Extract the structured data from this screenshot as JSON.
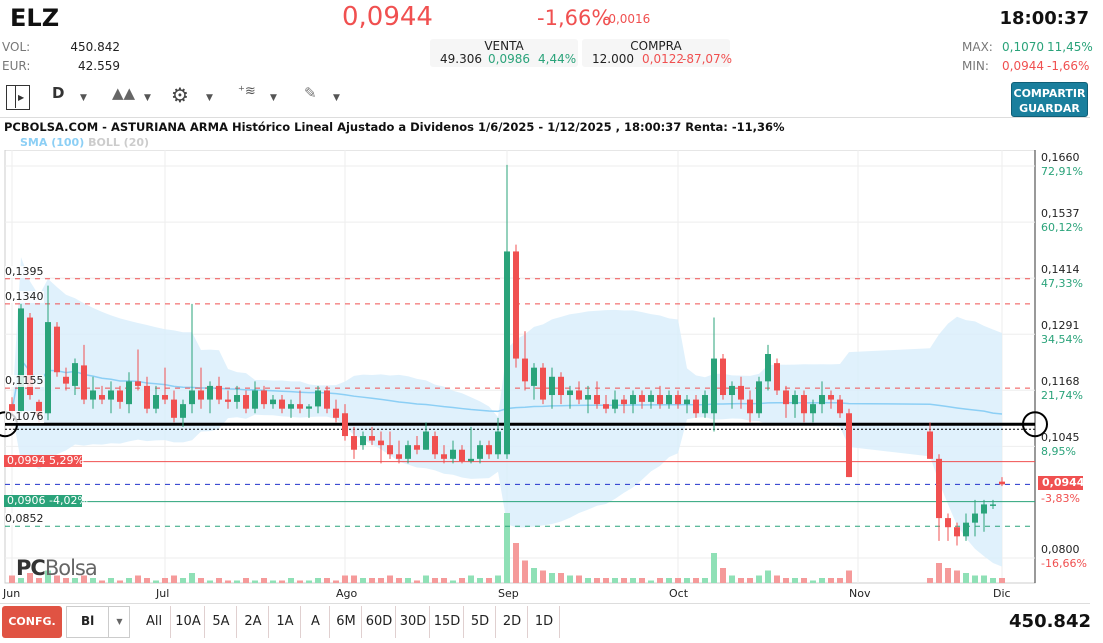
{
  "header": {
    "ticker": "ELZ",
    "price": "0,0944",
    "change_pct": "-1,66%",
    "change_abs": "-0,0016",
    "time": "18:00:37",
    "vol_label": "VOL:",
    "vol": "450.842",
    "eur_label": "EUR:",
    "eur": "42.559",
    "venta": {
      "label": "VENTA",
      "qty": "49.306",
      "price": "0,0986",
      "pct": "4,44%"
    },
    "compra": {
      "label": "COMPRA",
      "qty": "12.000",
      "price": "0,0122",
      "pct": "-87,07%"
    },
    "max_label": "MAX:",
    "max": "0,1070",
    "max_pct": "11,45%",
    "min_label": "MIN:",
    "min": "0,0944",
    "min_pct": "-1,66%"
  },
  "toolbar": {
    "period": "D",
    "share_label": "COMPARTIR",
    "save_label": "GUARDAR",
    "icons": [
      "panel-toggle-icon",
      "area-chart-icon",
      "gear-icon",
      "indicator-icon",
      "pencil-icon"
    ]
  },
  "chart": {
    "title": "PCBOLSA.COM - ASTURIANA ARMA Histórico Lineal Ajustado a Dividenos 1/6/2025 - 1/12/2025 , 18:00:37 Renta: -11,36%",
    "legend": [
      {
        "label": "SMA (100)",
        "color": "#8ccff5"
      },
      {
        "label": "BOLL (20)",
        "color": "#cccccc"
      }
    ],
    "logo": "PCBolsa"
  },
  "colors": {
    "up": "#2aa37a",
    "down": "#f05050",
    "band": "#d8eefb",
    "accent": "#1a7f9d"
  },
  "chart_data": {
    "type": "candlestick",
    "ylim": [
      0.08,
      0.166
    ],
    "y_ticks": [
      {
        "v": "0,1660",
        "p": "72,91%"
      },
      {
        "v": "0,1537",
        "p": "60,12%"
      },
      {
        "v": "0,1414",
        "p": "47,33%"
      },
      {
        "v": "0,1291",
        "p": "34,54%"
      },
      {
        "v": "0,1168",
        "p": "21,74%"
      },
      {
        "v": "0,1045",
        "p": "8,95%"
      },
      {
        "v": "0,0800",
        "p": "-16,66%"
      }
    ],
    "y_tick_values": [
      0.166,
      0.1537,
      0.1414,
      0.1291,
      0.1168,
      0.1045,
      0.08
    ],
    "current": {
      "value": 0.0944,
      "label": "0,0944",
      "pct": "-3,83%"
    },
    "months": [
      {
        "label": "Jun",
        "i": 0
      },
      {
        "label": "Jul",
        "i": 17
      },
      {
        "label": "Ago",
        "i": 37
      },
      {
        "label": "Sep",
        "i": 55
      },
      {
        "label": "Oct",
        "i": 74
      },
      {
        "label": "Nov",
        "i": 94
      },
      {
        "label": "Dic",
        "i": 110
      }
    ],
    "levels": [
      {
        "value": 0.1395,
        "label": "0,1395",
        "style": "dash",
        "color": "#f05050"
      },
      {
        "value": 0.134,
        "label": "0,1340",
        "style": "dash",
        "color": "#f05050"
      },
      {
        "value": 0.1155,
        "label": "0,1155",
        "style": "dash",
        "color": "#f05050"
      },
      {
        "value": 0.1076,
        "label": "0,1076",
        "style": "thick",
        "color": "#000000"
      },
      {
        "value": 0.0994,
        "label": "0,0994  5,29%",
        "style": "solid",
        "color": "#f05050",
        "tag": true
      },
      {
        "value": 0.0944,
        "label": "",
        "style": "dash",
        "color": "#2233cc"
      },
      {
        "value": 0.0906,
        "label": "0,0906  -4,02%",
        "style": "solid",
        "color": "#2aa37a",
        "tag": true
      },
      {
        "value": 0.0852,
        "label": "0,0852",
        "style": "dash",
        "color": "#2aa37a"
      }
    ],
    "ohlc": [
      [
        0.112,
        0.1135,
        0.11,
        0.1105
      ],
      [
        0.1105,
        0.134,
        0.11,
        0.133
      ],
      [
        0.131,
        0.132,
        0.113,
        0.114
      ],
      [
        0.1125,
        0.113,
        0.108,
        0.1095
      ],
      [
        0.11,
        0.138,
        0.1085,
        0.13
      ],
      [
        0.129,
        0.13,
        0.118,
        0.119
      ],
      [
        0.118,
        0.12,
        0.115,
        0.1165
      ],
      [
        0.116,
        0.122,
        0.114,
        0.121
      ],
      [
        0.1205,
        0.125,
        0.112,
        0.113
      ],
      [
        0.113,
        0.118,
        0.111,
        0.115
      ],
      [
        0.114,
        0.116,
        0.112,
        0.113
      ],
      [
        0.113,
        0.117,
        0.11,
        0.115
      ],
      [
        0.115,
        0.116,
        0.111,
        0.1125
      ],
      [
        0.112,
        0.119,
        0.11,
        0.117
      ],
      [
        0.117,
        0.124,
        0.115,
        0.116
      ],
      [
        0.116,
        0.118,
        0.11,
        0.111
      ],
      [
        0.111,
        0.116,
        0.11,
        0.114
      ],
      [
        0.114,
        0.12,
        0.112,
        0.113
      ],
      [
        0.113,
        0.115,
        0.108,
        0.109
      ],
      [
        0.109,
        0.113,
        0.107,
        0.112
      ],
      [
        0.112,
        0.134,
        0.11,
        0.115
      ],
      [
        0.115,
        0.12,
        0.111,
        0.113
      ],
      [
        0.113,
        0.117,
        0.11,
        0.116
      ],
      [
        0.116,
        0.118,
        0.112,
        0.113
      ],
      [
        0.113,
        0.115,
        0.111,
        0.1125
      ],
      [
        0.1125,
        0.116,
        0.111,
        0.114
      ],
      [
        0.114,
        0.115,
        0.11,
        0.111
      ],
      [
        0.111,
        0.117,
        0.11,
        0.115
      ],
      [
        0.115,
        0.116,
        0.111,
        0.112
      ],
      [
        0.112,
        0.114,
        0.111,
        0.113
      ],
      [
        0.113,
        0.114,
        0.11,
        0.111
      ],
      [
        0.111,
        0.113,
        0.109,
        0.112
      ],
      [
        0.112,
        0.115,
        0.11,
        0.111
      ],
      [
        0.111,
        0.112,
        0.109,
        0.1115
      ],
      [
        0.1115,
        0.116,
        0.11,
        0.115
      ],
      [
        0.115,
        0.116,
        0.11,
        0.111
      ],
      [
        0.111,
        0.113,
        0.108,
        0.109
      ],
      [
        0.11,
        0.112,
        0.104,
        0.105
      ],
      [
        0.105,
        0.107,
        0.1,
        0.102
      ],
      [
        0.103,
        0.106,
        0.102,
        0.105
      ],
      [
        0.105,
        0.107,
        0.103,
        0.104
      ],
      [
        0.104,
        0.106,
        0.099,
        0.103
      ],
      [
        0.103,
        0.106,
        0.1,
        0.101
      ],
      [
        0.101,
        0.104,
        0.099,
        0.1
      ],
      [
        0.1,
        0.104,
        0.099,
        0.103
      ],
      [
        0.103,
        0.105,
        0.101,
        0.102
      ],
      [
        0.102,
        0.108,
        0.102,
        0.106
      ],
      [
        0.105,
        0.106,
        0.1,
        0.101
      ],
      [
        0.101,
        0.103,
        0.099,
        0.1
      ],
      [
        0.1,
        0.104,
        0.099,
        0.102
      ],
      [
        0.102,
        0.103,
        0.099,
        0.0995
      ],
      [
        0.0995,
        0.107,
        0.099,
        0.1
      ],
      [
        0.1,
        0.104,
        0.099,
        0.103
      ],
      [
        0.103,
        0.104,
        0.1,
        0.101
      ],
      [
        0.101,
        0.109,
        0.1,
        0.106
      ],
      [
        0.101,
        0.1645,
        0.1,
        0.1455
      ],
      [
        0.1455,
        0.147,
        0.12,
        0.122
      ],
      [
        0.122,
        0.128,
        0.115,
        0.117
      ],
      [
        0.116,
        0.121,
        0.113,
        0.12
      ],
      [
        0.12,
        0.121,
        0.112,
        0.113
      ],
      [
        0.114,
        0.12,
        0.111,
        0.118
      ],
      [
        0.118,
        0.119,
        0.112,
        0.114
      ],
      [
        0.114,
        0.116,
        0.111,
        0.115
      ],
      [
        0.115,
        0.117,
        0.112,
        0.113
      ],
      [
        0.113,
        0.116,
        0.11,
        0.114
      ],
      [
        0.114,
        0.117,
        0.111,
        0.112
      ],
      [
        0.112,
        0.114,
        0.11,
        0.111
      ],
      [
        0.111,
        0.115,
        0.11,
        0.113
      ],
      [
        0.113,
        0.114,
        0.11,
        0.112
      ],
      [
        0.112,
        0.115,
        0.11,
        0.114
      ],
      [
        0.114,
        0.115,
        0.111,
        0.1125
      ],
      [
        0.1125,
        0.115,
        0.111,
        0.114
      ],
      [
        0.114,
        0.116,
        0.111,
        0.112
      ],
      [
        0.112,
        0.115,
        0.111,
        0.114
      ],
      [
        0.114,
        0.115,
        0.111,
        0.112
      ],
      [
        0.112,
        0.114,
        0.11,
        0.113
      ],
      [
        0.113,
        0.114,
        0.109,
        0.11
      ],
      [
        0.11,
        0.115,
        0.109,
        0.114
      ],
      [
        0.11,
        0.131,
        0.106,
        0.122
      ],
      [
        0.122,
        0.123,
        0.113,
        0.114
      ],
      [
        0.114,
        0.117,
        0.111,
        0.116
      ],
      [
        0.116,
        0.118,
        0.111,
        0.113
      ],
      [
        0.113,
        0.115,
        0.108,
        0.11
      ],
      [
        0.11,
        0.118,
        0.109,
        0.117
      ],
      [
        0.117,
        0.125,
        0.115,
        0.123
      ],
      [
        0.121,
        0.122,
        0.114,
        0.115
      ],
      [
        0.115,
        0.116,
        0.109,
        0.112
      ],
      [
        0.112,
        0.115,
        0.109,
        0.114
      ],
      [
        0.114,
        0.115,
        0.108,
        0.11
      ],
      [
        0.11,
        0.113,
        0.108,
        0.112
      ],
      [
        0.112,
        0.117,
        0.11,
        0.114
      ],
      [
        0.114,
        0.115,
        0.111,
        0.113
      ],
      [
        0.113,
        0.114,
        0.109,
        0.11
      ],
      [
        0.11,
        0.111,
        0.096,
        0.096
      ],
      null,
      null,
      null,
      null,
      null,
      null,
      null,
      null,
      [
        0.106,
        0.108,
        0.1,
        0.1
      ],
      [
        0.1,
        0.101,
        0.082,
        0.087
      ],
      [
        0.087,
        0.088,
        0.082,
        0.085
      ],
      [
        0.085,
        0.086,
        0.081,
        0.083
      ],
      [
        0.083,
        0.088,
        0.082,
        0.086
      ],
      [
        0.086,
        0.091,
        0.083,
        0.088
      ],
      [
        0.088,
        0.091,
        0.084,
        0.09
      ],
      [
        0.09,
        0.091,
        0.089,
        0.09
      ],
      [
        0.095,
        0.096,
        0.094,
        0.0944
      ]
    ],
    "volume": [
      3,
      2,
      4,
      2,
      5,
      3,
      2,
      2,
      3,
      2,
      1,
      2,
      1,
      2,
      3,
      2,
      1,
      2,
      3,
      2,
      4,
      2,
      1,
      2,
      1,
      1,
      2,
      1,
      2,
      1,
      1,
      2,
      1,
      1,
      2,
      2,
      1,
      3,
      3,
      2,
      2,
      2,
      3,
      2,
      2,
      1,
      3,
      2,
      2,
      1,
      2,
      3,
      2,
      2,
      3,
      28,
      16,
      9,
      6,
      5,
      4,
      4,
      3,
      3,
      2,
      2,
      2,
      2,
      2,
      2,
      2,
      1,
      2,
      2,
      2,
      2,
      2,
      2,
      12,
      6,
      3,
      2,
      2,
      3,
      5,
      3,
      2,
      2,
      2,
      1,
      2,
      2,
      2,
      5,
      0,
      0,
      0,
      0,
      0,
      0,
      0,
      0,
      2,
      8,
      6,
      5,
      4,
      3,
      3,
      2,
      2
    ]
  },
  "footer": {
    "config": "CONFG.",
    "type": "Bl",
    "periods": [
      "All",
      "10A",
      "5A",
      "2A",
      "1A",
      "A",
      "6M",
      "60D",
      "30D",
      "15D",
      "5D",
      "2D",
      "1D"
    ],
    "volume": "450.842"
  }
}
